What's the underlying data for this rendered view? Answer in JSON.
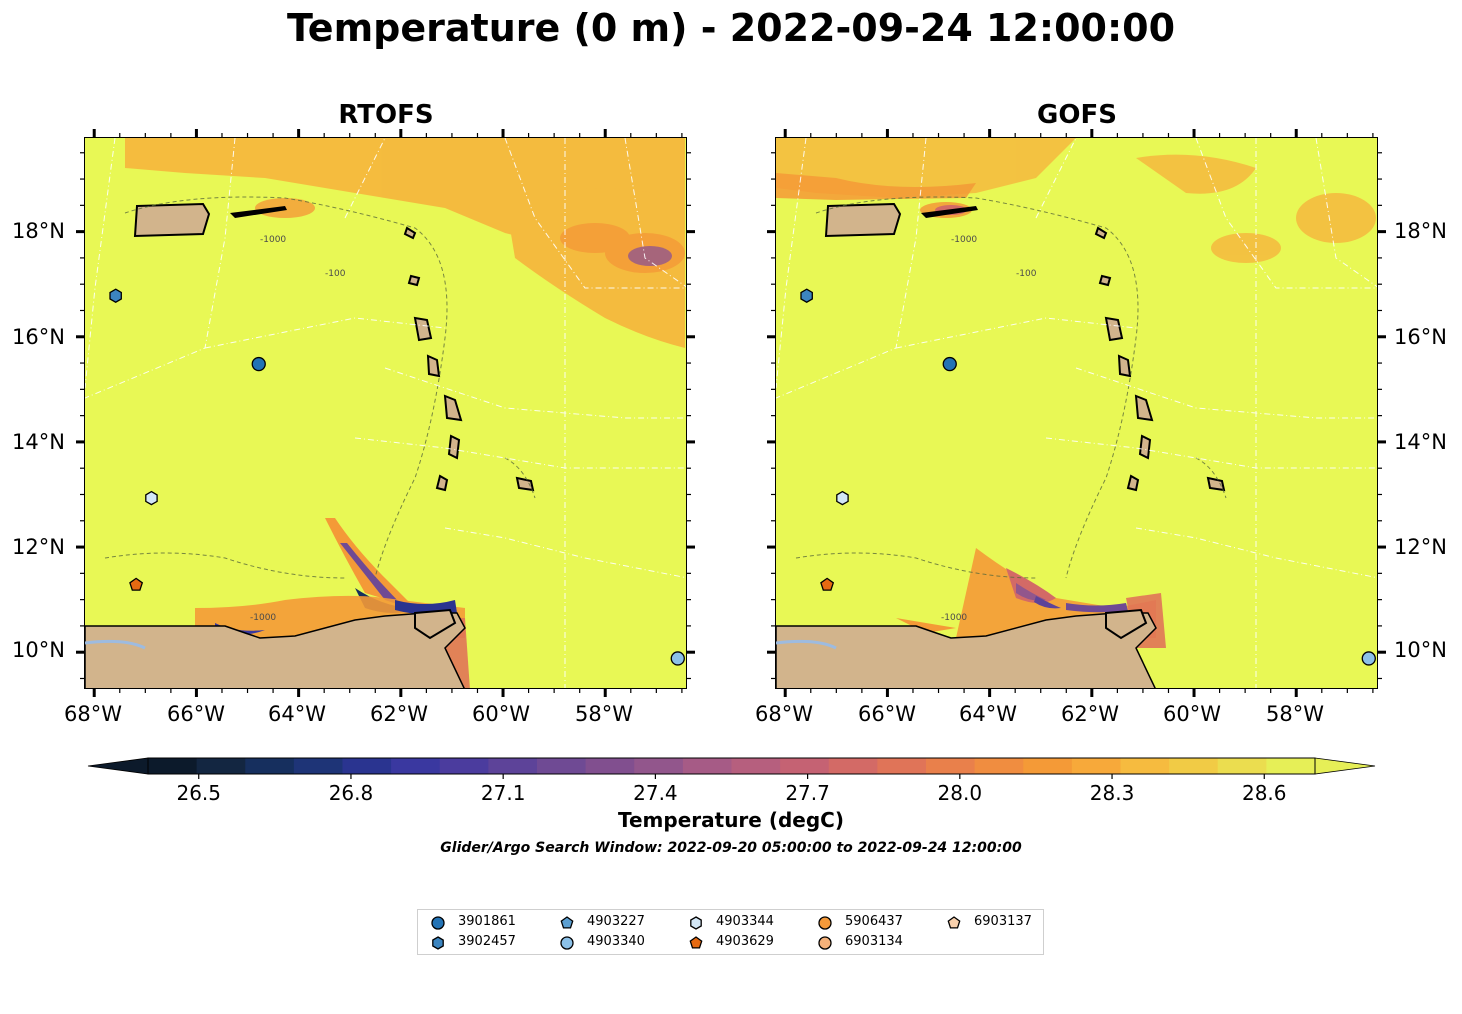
{
  "title": "Temperature (0 m) - 2022-09-24 12:00:00",
  "maps": [
    {
      "title": "RTOFS"
    },
    {
      "title": "GOFS"
    }
  ],
  "lat_labels": [
    "18°N",
    "16°N",
    "14°N",
    "12°N",
    "10°N"
  ],
  "lon_labels": [
    "68°W",
    "66°W",
    "64°W",
    "62°W",
    "60°W",
    "58°W"
  ],
  "contour_labels": [
    "-1000",
    "-100"
  ],
  "colorbar": {
    "label": "Temperature (degC)",
    "ticks": [
      "26.5",
      "26.8",
      "27.1",
      "27.4",
      "27.7",
      "28.0",
      "28.3",
      "28.6"
    ],
    "min": 26.4,
    "max": 28.7,
    "colors": [
      "#0c1a2b",
      "#132641",
      "#162f5e",
      "#1e3477",
      "#2a3490",
      "#3a38a0",
      "#4b3c9e",
      "#5d4399",
      "#6f4a94",
      "#814f8f",
      "#92568c",
      "#a65b86",
      "#b65f7e",
      "#c56273",
      "#d36a66",
      "#e07458",
      "#e9804b",
      "#f08d40",
      "#f49a37",
      "#f7a93a",
      "#f6bb3f",
      "#f1cb45",
      "#ebdd4f",
      "#e6ef57"
    ]
  },
  "search_window": "Glider/Argo Search Window: 2022-09-20 05:00:00 to 2022-09-24 12:00:00",
  "legend": [
    {
      "id": "3901861",
      "marker": "circle",
      "color": "#2373b5"
    },
    {
      "id": "3902457",
      "marker": "hexagon",
      "color": "#3c85c0"
    },
    {
      "id": "4903227",
      "marker": "pentagon",
      "color": "#5c9fd1"
    },
    {
      "id": "4903340",
      "marker": "circle",
      "color": "#8cc1e8"
    },
    {
      "id": "4903344",
      "marker": "hexagon",
      "color": "#d3e7f6"
    },
    {
      "id": "4903629",
      "marker": "pentagon",
      "color": "#e66a12"
    },
    {
      "id": "5906437",
      "marker": "circle",
      "color": "#f59a3a"
    },
    {
      "id": "6903134",
      "marker": "circle",
      "color": "#f6b27a"
    },
    {
      "id": "6903137",
      "marker": "pentagon",
      "color": "#f9d1ad"
    }
  ],
  "floats_on_map": [
    {
      "id": "3902457",
      "lon": -67.6,
      "lat": 16.8
    },
    {
      "id": "3901861",
      "lon": -64.8,
      "lat": 15.5
    },
    {
      "id": "4903344",
      "lon": -66.9,
      "lat": 12.95
    },
    {
      "id": "4903629",
      "lon": -67.2,
      "lat": 11.3
    },
    {
      "id": "4903340",
      "lon": -56.6,
      "lat": 9.9
    }
  ],
  "colors": {
    "land": "#d2b48c",
    "ocean_warm": "#e8f855",
    "river": "#9dbbe0"
  }
}
